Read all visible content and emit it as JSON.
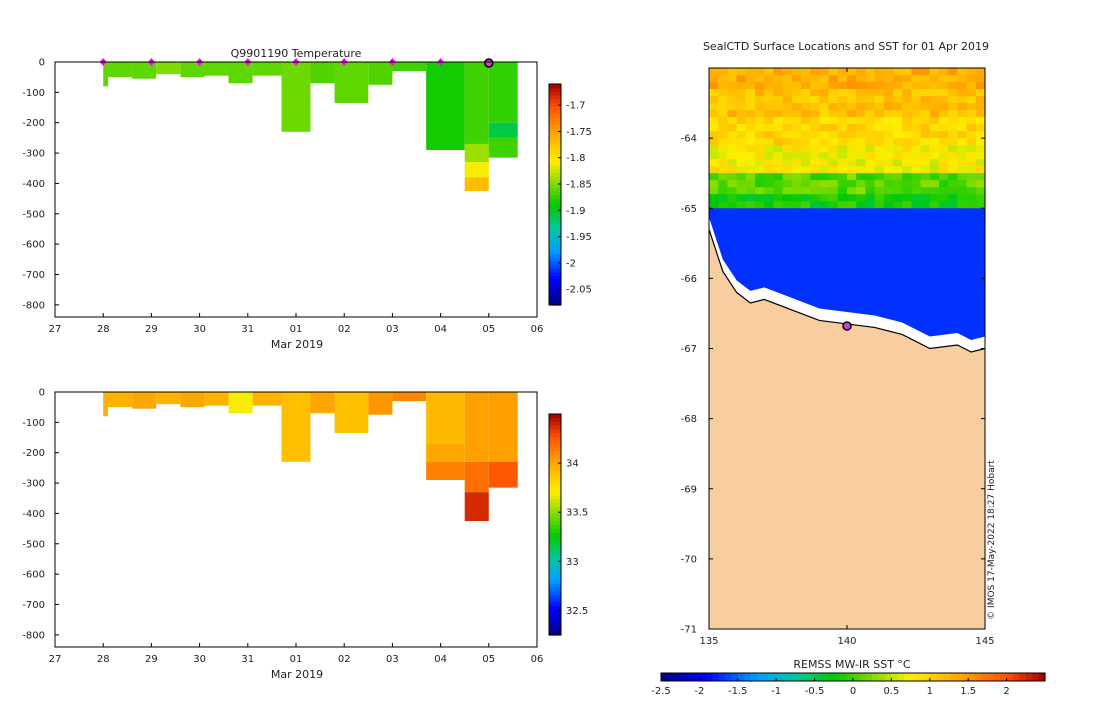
{
  "chart_data": [
    {
      "type": "heatmap",
      "panel": "temperature-section",
      "title": "Q9901190  Temperature",
      "xlabel": "Mar 2019",
      "ylabel": "",
      "x_tick_labels": [
        "27",
        "28",
        "29",
        "30",
        "31",
        "01",
        "02",
        "03",
        "04",
        "05",
        "06"
      ],
      "y_tick_labels": [
        "0",
        "-100",
        "-200",
        "-300",
        "-400",
        "-500",
        "-600",
        "-700",
        "-800"
      ],
      "x_day_range": [
        27,
        37
      ],
      "ylim": [
        -840,
        0
      ],
      "colorbar": {
        "min": -2.08,
        "max": -1.66,
        "tick_values": [
          -1.7,
          -1.75,
          -1.8,
          -1.85,
          -1.9,
          -1.95,
          -2,
          -2.05
        ],
        "tick_labels": [
          "-1.7",
          "-1.75",
          "-1.8",
          "-1.85",
          "-1.9",
          "-1.95",
          "-2",
          "-2.05"
        ]
      },
      "profile_markers_day": [
        28,
        29,
        30,
        31,
        32,
        33,
        34,
        35
      ],
      "latest_profile_day": 36,
      "profiles": [
        {
          "start": 28.0,
          "end": 28.1,
          "top": 0,
          "bottom": -80,
          "value": -1.86
        },
        {
          "start": 28.1,
          "end": 28.6,
          "top": 0,
          "bottom": -50,
          "value": -1.86
        },
        {
          "start": 28.6,
          "end": 29.1,
          "top": 0,
          "bottom": -55,
          "value": -1.86
        },
        {
          "start": 29.1,
          "end": 29.6,
          "top": 0,
          "bottom": -40,
          "value": -1.85
        },
        {
          "start": 29.6,
          "end": 30.1,
          "top": 0,
          "bottom": -50,
          "value": -1.86
        },
        {
          "start": 30.1,
          "end": 30.6,
          "top": 0,
          "bottom": -45,
          "value": -1.86
        },
        {
          "start": 30.6,
          "end": 31.1,
          "top": 0,
          "bottom": -70,
          "value": -1.86
        },
        {
          "start": 31.1,
          "end": 31.7,
          "top": 0,
          "bottom": -45,
          "value": -1.86
        },
        {
          "start": 31.7,
          "end": 32.3,
          "top": 0,
          "bottom": -230,
          "value": -1.855
        },
        {
          "start": 32.3,
          "end": 32.8,
          "top": 0,
          "bottom": -70,
          "value": -1.865
        },
        {
          "start": 32.8,
          "end": 33.5,
          "top": 0,
          "bottom": -135,
          "value": -1.86
        },
        {
          "start": 33.5,
          "end": 34.0,
          "top": 0,
          "bottom": -75,
          "value": -1.865
        },
        {
          "start": 34.0,
          "end": 34.7,
          "top": 0,
          "bottom": -30,
          "value": -1.87
        },
        {
          "start": 34.7,
          "end": 35.5,
          "top": 0,
          "bottom": -290,
          "value": -1.885
        },
        {
          "start": 35.5,
          "end": 36.0,
          "top": 0,
          "bottom": -270,
          "value": -1.87
        },
        {
          "start": 35.5,
          "end": 36.0,
          "top": -270,
          "bottom": -330,
          "value": -1.84
        },
        {
          "start": 35.5,
          "end": 36.0,
          "top": -330,
          "bottom": -380,
          "value": -1.81
        },
        {
          "start": 35.5,
          "end": 36.0,
          "top": -380,
          "bottom": -425,
          "value": -1.77
        },
        {
          "start": 36.0,
          "end": 36.6,
          "top": 0,
          "bottom": -200,
          "value": -1.875
        },
        {
          "start": 36.0,
          "end": 36.6,
          "top": -200,
          "bottom": -250,
          "value": -1.91
        },
        {
          "start": 36.0,
          "end": 36.6,
          "top": -250,
          "bottom": -315,
          "value": -1.87
        }
      ]
    },
    {
      "type": "heatmap",
      "panel": "salinity-section",
      "title": "",
      "xlabel": "Mar 2019",
      "ylabel": "",
      "x_tick_labels": [
        "27",
        "28",
        "29",
        "30",
        "31",
        "01",
        "02",
        "03",
        "04",
        "05",
        "06"
      ],
      "y_tick_labels": [
        "0",
        "-100",
        "-200",
        "-300",
        "-400",
        "-500",
        "-600",
        "-700",
        "-800"
      ],
      "x_day_range": [
        27,
        37
      ],
      "ylim": [
        -840,
        0
      ],
      "colorbar": {
        "min": 32.25,
        "max": 34.5,
        "tick_values": [
          32.5,
          33,
          33.5,
          34
        ],
        "tick_labels": [
          "32.5",
          "33",
          "33.5",
          "34"
        ]
      },
      "profiles": [
        {
          "start": 28.0,
          "end": 28.1,
          "top": 0,
          "bottom": -80,
          "value": 33.95
        },
        {
          "start": 28.1,
          "end": 28.6,
          "top": 0,
          "bottom": -50,
          "value": 33.95
        },
        {
          "start": 28.6,
          "end": 29.1,
          "top": 0,
          "bottom": -55,
          "value": 34.0
        },
        {
          "start": 29.1,
          "end": 29.6,
          "top": 0,
          "bottom": -40,
          "value": 33.95
        },
        {
          "start": 29.6,
          "end": 30.1,
          "top": 0,
          "bottom": -50,
          "value": 34.0
        },
        {
          "start": 30.1,
          "end": 30.6,
          "top": 0,
          "bottom": -45,
          "value": 33.95
        },
        {
          "start": 30.6,
          "end": 31.1,
          "top": 0,
          "bottom": -70,
          "value": 33.7
        },
        {
          "start": 31.1,
          "end": 31.7,
          "top": 0,
          "bottom": -45,
          "value": 33.95
        },
        {
          "start": 31.7,
          "end": 32.3,
          "top": 0,
          "bottom": -230,
          "value": 33.9
        },
        {
          "start": 32.3,
          "end": 32.8,
          "top": 0,
          "bottom": -70,
          "value": 34.0
        },
        {
          "start": 32.8,
          "end": 33.5,
          "top": 0,
          "bottom": -135,
          "value": 33.9
        },
        {
          "start": 33.5,
          "end": 34.0,
          "top": 0,
          "bottom": -75,
          "value": 34.05
        },
        {
          "start": 34.0,
          "end": 34.7,
          "top": 0,
          "bottom": -30,
          "value": 34.1
        },
        {
          "start": 34.7,
          "end": 35.5,
          "top": 0,
          "bottom": -170,
          "value": 33.92
        },
        {
          "start": 34.7,
          "end": 35.5,
          "top": -170,
          "bottom": -230,
          "value": 34.0
        },
        {
          "start": 34.7,
          "end": 35.5,
          "top": -230,
          "bottom": -290,
          "value": 34.12
        },
        {
          "start": 35.5,
          "end": 36.0,
          "top": 0,
          "bottom": -230,
          "value": 34.02
        },
        {
          "start": 35.5,
          "end": 36.0,
          "top": -230,
          "bottom": -330,
          "value": 34.18
        },
        {
          "start": 35.5,
          "end": 36.0,
          "top": -330,
          "bottom": -425,
          "value": 34.38
        },
        {
          "start": 36.0,
          "end": 36.6,
          "top": 0,
          "bottom": -230,
          "value": 34.02
        },
        {
          "start": 36.0,
          "end": 36.6,
          "top": -230,
          "bottom": -315,
          "value": 34.25
        }
      ]
    },
    {
      "type": "heatmap",
      "panel": "sst-map",
      "title": "SealCTD Surface Locations and SST for 01 Apr 2019",
      "xlabel": "REMSS MW-IR SST °C",
      "x_tick_labels": [
        "135",
        "140",
        "145"
      ],
      "x_tick_values": [
        135,
        140,
        145
      ],
      "y_tick_labels": [
        "-64",
        "-65",
        "-66",
        "-67",
        "-68",
        "-69",
        "-70",
        "-71"
      ],
      "y_tick_values": [
        -64,
        -65,
        -66,
        -67,
        -68,
        -69,
        -70,
        -71
      ],
      "xlim": [
        135,
        145
      ],
      "ylim": [
        -71,
        -63
      ],
      "colorbar": {
        "min": -2.5,
        "max": 2.5,
        "tick_values": [
          -2.5,
          -2,
          -1.5,
          -1,
          -0.5,
          0,
          0.5,
          1,
          1.5,
          2
        ],
        "tick_labels": [
          "-2.5",
          "-2",
          "-1.5",
          "-1",
          "-0.5",
          "0",
          "0.5",
          "1",
          "1.5",
          "2"
        ]
      },
      "sst_bands": [
        {
          "lat_north": -63.0,
          "lat_south": -63.3,
          "value": 1.3
        },
        {
          "lat_north": -63.3,
          "lat_south": -63.7,
          "value": 1.15
        },
        {
          "lat_north": -63.7,
          "lat_south": -64.1,
          "value": 0.95
        },
        {
          "lat_north": -64.1,
          "lat_south": -64.5,
          "value": 0.75
        },
        {
          "lat_north": -64.5,
          "lat_south": -64.8,
          "value": 0.1
        },
        {
          "lat_north": -64.8,
          "lat_south": -65.0,
          "value": -0.2
        }
      ],
      "ice_value": -1.7,
      "ice_region": {
        "lat_north": -65.0,
        "lat_south": -67.05
      },
      "coastline": [
        [
          135.0,
          -65.3
        ],
        [
          135.5,
          -65.9
        ],
        [
          136.0,
          -66.2
        ],
        [
          136.5,
          -66.35
        ],
        [
          137.0,
          -66.3
        ],
        [
          138.0,
          -66.45
        ],
        [
          139.0,
          -66.6
        ],
        [
          140.0,
          -66.65
        ],
        [
          141.0,
          -66.7
        ],
        [
          142.0,
          -66.8
        ],
        [
          143.0,
          -67.0
        ],
        [
          144.0,
          -66.95
        ],
        [
          144.5,
          -67.05
        ],
        [
          145.0,
          -67.0
        ]
      ],
      "land_color": "#f8cda0",
      "float_position": {
        "lon": 140.0,
        "lat": -66.68,
        "color": "#d040d0"
      },
      "credit": "© IMOS 17-May-2022 18:27 Hobart"
    }
  ]
}
